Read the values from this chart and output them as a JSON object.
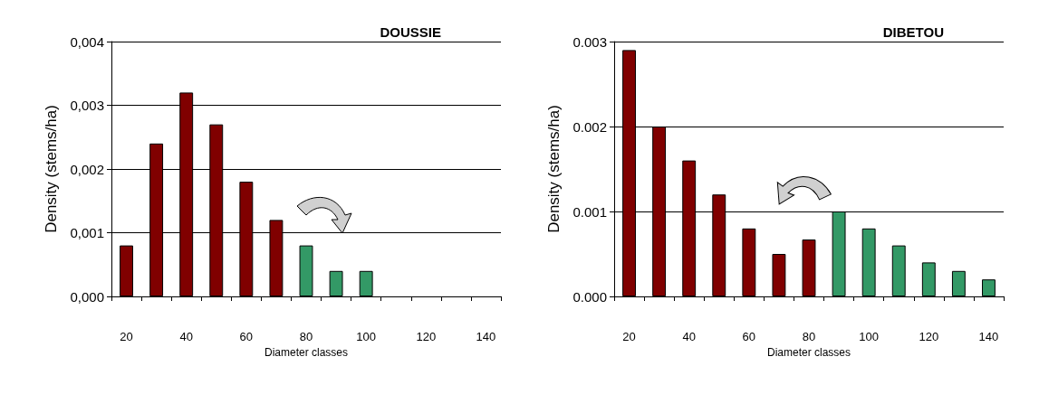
{
  "chart_data": [
    {
      "type": "bar",
      "title": "DOUSSIE",
      "xlabel": "Diameter classes",
      "ylabel": "Density (stems/ha)",
      "categories": [
        "20",
        null,
        "40",
        null,
        "60",
        null,
        "80",
        null,
        "100",
        null,
        "120",
        null,
        "140"
      ],
      "values": [
        0.0008,
        0.0024,
        0.0032,
        0.0027,
        0.0018,
        0.0012,
        0.0008,
        0.0004,
        0.0004,
        null,
        null,
        null,
        null
      ],
      "colors": [
        "#800000",
        "#800000",
        "#800000",
        "#800000",
        "#800000",
        "#800000",
        "#339966",
        "#339966",
        "#339966",
        null,
        null,
        null,
        null
      ],
      "ylim": [
        0,
        0.004
      ],
      "yticks": [
        {
          "value": 0,
          "label": "0,000"
        },
        {
          "value": 0.001,
          "label": "0,001"
        },
        {
          "value": 0.002,
          "label": "0,002"
        },
        {
          "value": 0.003,
          "label": "0,003"
        },
        {
          "value": 0.004,
          "label": "0,004"
        }
      ],
      "grid": "y"
    },
    {
      "type": "bar",
      "title": "DIBETOU",
      "xlabel": "Diameter classes",
      "ylabel": "Density (stems/ha)",
      "categories": [
        "20",
        null,
        "40",
        null,
        "60",
        null,
        "80",
        null,
        "100",
        null,
        "120",
        null,
        "140"
      ],
      "values": [
        0.0029,
        0.002,
        0.0016,
        0.0012,
        0.0008,
        0.0005,
        0.00067,
        0.001,
        0.0008,
        0.0006,
        0.0004,
        0.0003,
        0.0002
      ],
      "colors": [
        "#800000",
        "#800000",
        "#800000",
        "#800000",
        "#800000",
        "#800000",
        "#800000",
        "#339966",
        "#339966",
        "#339966",
        "#339966",
        "#339966",
        "#339966"
      ],
      "ylim": [
        0,
        0.003
      ],
      "yticks": [
        {
          "value": 0,
          "label": "0.000"
        },
        {
          "value": 0.001,
          "label": "0.001"
        },
        {
          "value": 0.002,
          "label": "0.002"
        },
        {
          "value": 0.003,
          "label": "0.003"
        }
      ],
      "grid": "y"
    }
  ]
}
